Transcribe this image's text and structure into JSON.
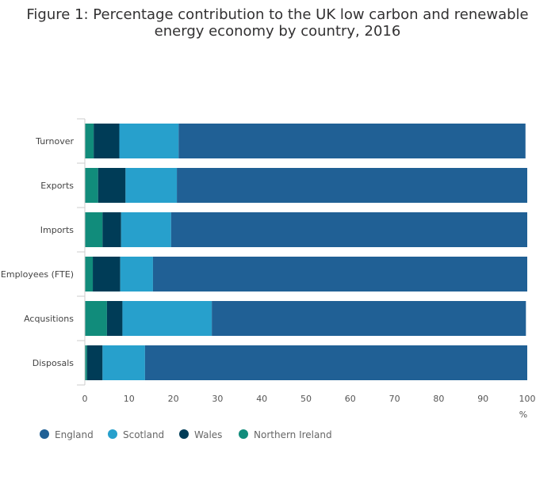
{
  "chart_data": {
    "type": "bar",
    "orientation": "horizontal",
    "stacked": true,
    "title": "Figure 1: Percentage contribution to the UK low carbon and renewable energy economy by country, 2016",
    "xlabel": "%",
    "ylabel": "",
    "xlim": [
      0,
      100
    ],
    "xticks": [
      0,
      10,
      20,
      30,
      40,
      50,
      60,
      70,
      80,
      90,
      100
    ],
    "grid": false,
    "legend_position": "bottom-left",
    "categories": [
      "Turnover",
      "Exports",
      "Imports",
      "Employees (FTE)",
      "Acqusitions",
      "Disposals"
    ],
    "series": [
      {
        "name": "Northern Ireland",
        "color": "#118c7b",
        "values": [
          2.0,
          3.0,
          4.0,
          1.8,
          5.0,
          0.5
        ]
      },
      {
        "name": "Wales",
        "color": "#003c57",
        "values": [
          5.8,
          6.2,
          4.2,
          6.2,
          3.5,
          3.5
        ]
      },
      {
        "name": "Scotland",
        "color": "#27a0cc",
        "values": [
          13.4,
          11.6,
          11.3,
          7.4,
          20.2,
          9.6
        ]
      },
      {
        "name": "England",
        "color": "#206095",
        "values": [
          78.4,
          79.2,
          80.5,
          84.6,
          71.0,
          86.4
        ]
      }
    ],
    "legend_order": [
      "England",
      "Scotland",
      "Wales",
      "Northern Ireland"
    ]
  }
}
